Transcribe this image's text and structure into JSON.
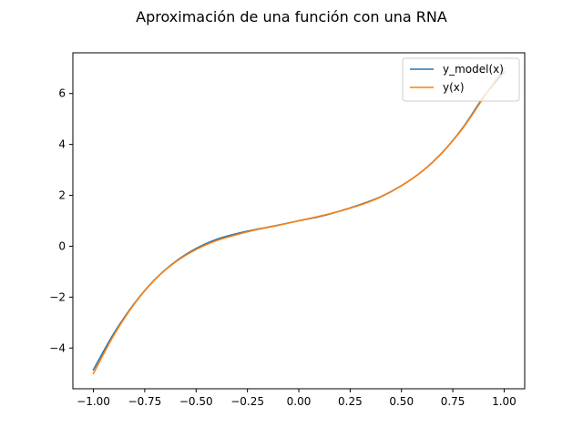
{
  "chart_data": {
    "type": "line",
    "title": "Aproximación de una función con una RNA",
    "xlabel": "",
    "ylabel": "",
    "xlim": [
      -1.1,
      1.1
    ],
    "ylim": [
      -5.6,
      7.6
    ],
    "xticks": [
      -1.0,
      -0.75,
      -0.5,
      -0.25,
      0.0,
      0.25,
      0.5,
      0.75,
      1.0
    ],
    "xtick_labels": [
      "−1.00",
      "−0.75",
      "−0.50",
      "−0.25",
      "0.00",
      "0.25",
      "0.50",
      "0.75",
      "1.00"
    ],
    "yticks": [
      -4,
      -2,
      0,
      2,
      4,
      6
    ],
    "ytick_labels": [
      "−4",
      "−2",
      "0",
      "2",
      "4",
      "6"
    ],
    "grid": false,
    "legend_position": "top-right",
    "series": [
      {
        "name": "y_model(x)",
        "color": "#1f77b4",
        "x": [
          -1.0,
          -0.9,
          -0.8,
          -0.7,
          -0.6,
          -0.5,
          -0.4,
          -0.3,
          -0.2,
          -0.1,
          0.0,
          0.1,
          0.2,
          0.3,
          0.4,
          0.5,
          0.6,
          0.7,
          0.8,
          0.9,
          1.0
        ],
        "y": [
          -4.85,
          -3.42,
          -2.24,
          -1.3,
          -0.6,
          -0.09,
          0.27,
          0.5,
          0.67,
          0.83,
          1.0,
          1.16,
          1.38,
          1.64,
          1.95,
          2.38,
          2.94,
          3.69,
          4.67,
          5.87,
          6.85
        ]
      },
      {
        "name": "y(x)",
        "color": "#ff7f0e",
        "x": [
          -1.0,
          -0.9,
          -0.8,
          -0.7,
          -0.6,
          -0.5,
          -0.4,
          -0.3,
          -0.2,
          -0.1,
          0.0,
          0.1,
          0.2,
          0.3,
          0.4,
          0.5,
          0.6,
          0.7,
          0.8,
          0.9,
          1.0
        ],
        "y": [
          -5.0,
          -3.49,
          -2.26,
          -1.31,
          -0.62,
          -0.13,
          0.22,
          0.46,
          0.66,
          0.82,
          1.0,
          1.18,
          1.38,
          1.62,
          1.94,
          2.38,
          2.94,
          3.7,
          4.65,
          5.84,
          7.0
        ]
      }
    ]
  }
}
